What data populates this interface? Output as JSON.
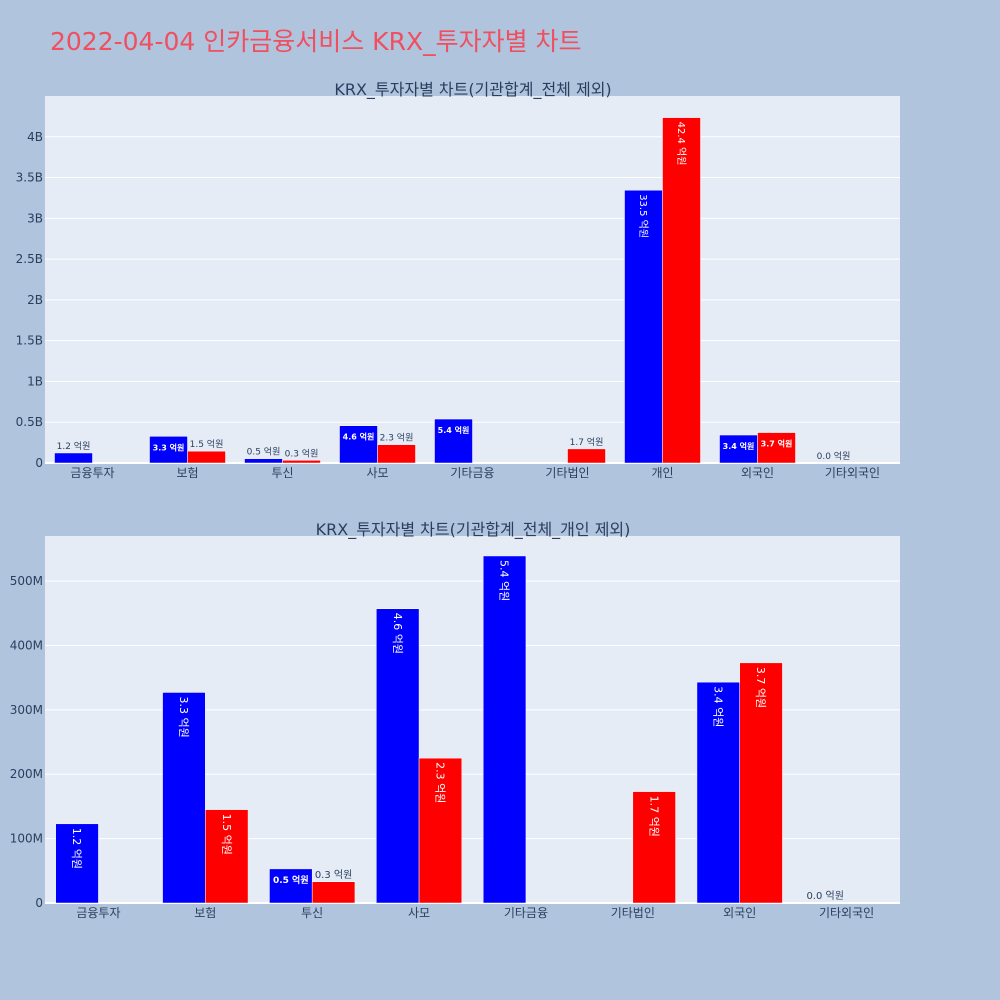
{
  "page": {
    "title": "2022-04-04 인카금융서비스 KRX_투자자별 차트"
  },
  "colors": {
    "background": "#b0c4de",
    "plot_bg": "#e5ecf6",
    "title": "#ef4f5f",
    "series_a": "#0000ff",
    "series_b": "#ff0000",
    "text": "#2a3f5f"
  },
  "chart_data": [
    {
      "type": "bar",
      "title": "KRX_투자자별 차트(기관합계_전체 제외)",
      "categories": [
        "금융투자",
        "보험",
        "투신",
        "사모",
        "기타금융",
        "기타법인",
        "개인",
        "외국인",
        "기타외국인"
      ],
      "ylim": [
        0,
        4500000000
      ],
      "yticks": [
        0,
        500000000,
        1000000000,
        1500000000,
        2000000000,
        2500000000,
        3000000000,
        3500000000,
        4000000000
      ],
      "ytick_labels": [
        "0",
        "0.5B",
        "1B",
        "1.5B",
        "2B",
        "2.5B",
        "3B",
        "3.5B",
        "4B"
      ],
      "grid": true,
      "series": [
        {
          "color": "#0000ff",
          "values": [
            123000000,
            327000000,
            53000000,
            457000000,
            539000000,
            0,
            3345000000,
            343000000,
            0
          ],
          "labels": [
            "1.2 억원",
            "3.3 억원",
            "0.5 억원",
            "4.6 억원",
            "5.4 억원",
            "",
            "33.5 억원",
            "3.4 억원",
            "0.0 억원"
          ]
        },
        {
          "color": "#ff0000",
          "values": [
            0,
            145000000,
            33000000,
            225000000,
            0,
            173000000,
            4235000000,
            373000000,
            0
          ],
          "labels": [
            "",
            "1.5 억원",
            "0.3 억원",
            "2.3 억원",
            "",
            "1.7 억원",
            "42.4 억원",
            "3.7 억원",
            ""
          ]
        }
      ]
    },
    {
      "type": "bar",
      "title": "KRX_투자자별 차트(기관합계_전체_개인 제외)",
      "categories": [
        "금융투자",
        "보험",
        "투신",
        "사모",
        "기타금융",
        "기타법인",
        "외국인",
        "기타외국인"
      ],
      "ylim": [
        0,
        570000000
      ],
      "yticks": [
        0,
        100000000,
        200000000,
        300000000,
        400000000,
        500000000
      ],
      "ytick_labels": [
        "0",
        "100M",
        "200M",
        "300M",
        "400M",
        "500M"
      ],
      "grid": true,
      "series": [
        {
          "color": "#0000ff",
          "values": [
            123000000,
            327000000,
            53000000,
            457000000,
            539000000,
            0,
            343000000,
            0
          ],
          "labels": [
            "1.2 억원",
            "3.3 억원",
            "0.5 억원",
            "4.6 억원",
            "5.4 억원",
            "",
            "3.4 억원",
            "0.0 억원"
          ]
        },
        {
          "color": "#ff0000",
          "values": [
            0,
            145000000,
            33000000,
            225000000,
            0,
            173000000,
            373000000,
            0
          ],
          "labels": [
            "",
            "1.5 억원",
            "0.3 억원",
            "2.3 억원",
            "",
            "1.7 억원",
            "3.7 억원",
            ""
          ]
        }
      ]
    }
  ]
}
